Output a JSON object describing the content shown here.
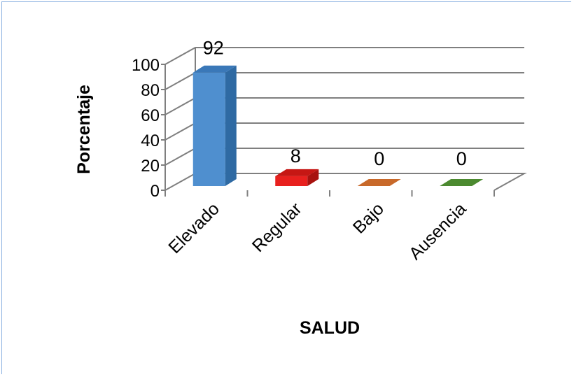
{
  "chart_data": {
    "type": "bar",
    "categories": [
      "Elevado",
      "Regular",
      "Bajo",
      "Ausencia"
    ],
    "values": [
      92,
      8,
      0,
      0
    ],
    "data_labels": [
      "92",
      "8",
      "0",
      "0"
    ],
    "xlabel": "SALUD",
    "ylabel": "Porcentaje",
    "ylim": [
      0,
      100
    ],
    "yticks": [
      "0",
      "20",
      "40",
      "60",
      "80",
      "100"
    ],
    "grid": true,
    "legend": "none",
    "colors": [
      "#4f8fcf",
      "#e8201e",
      "#c8692a",
      "#4c8a30"
    ],
    "side_colors": [
      "#2f6aa3",
      "#a8120f",
      "#9a4a18",
      "#2f6a1c"
    ],
    "top_colors": [
      "#3a78b8",
      "#c61714",
      "#b2581f",
      "#3d7826"
    ]
  }
}
